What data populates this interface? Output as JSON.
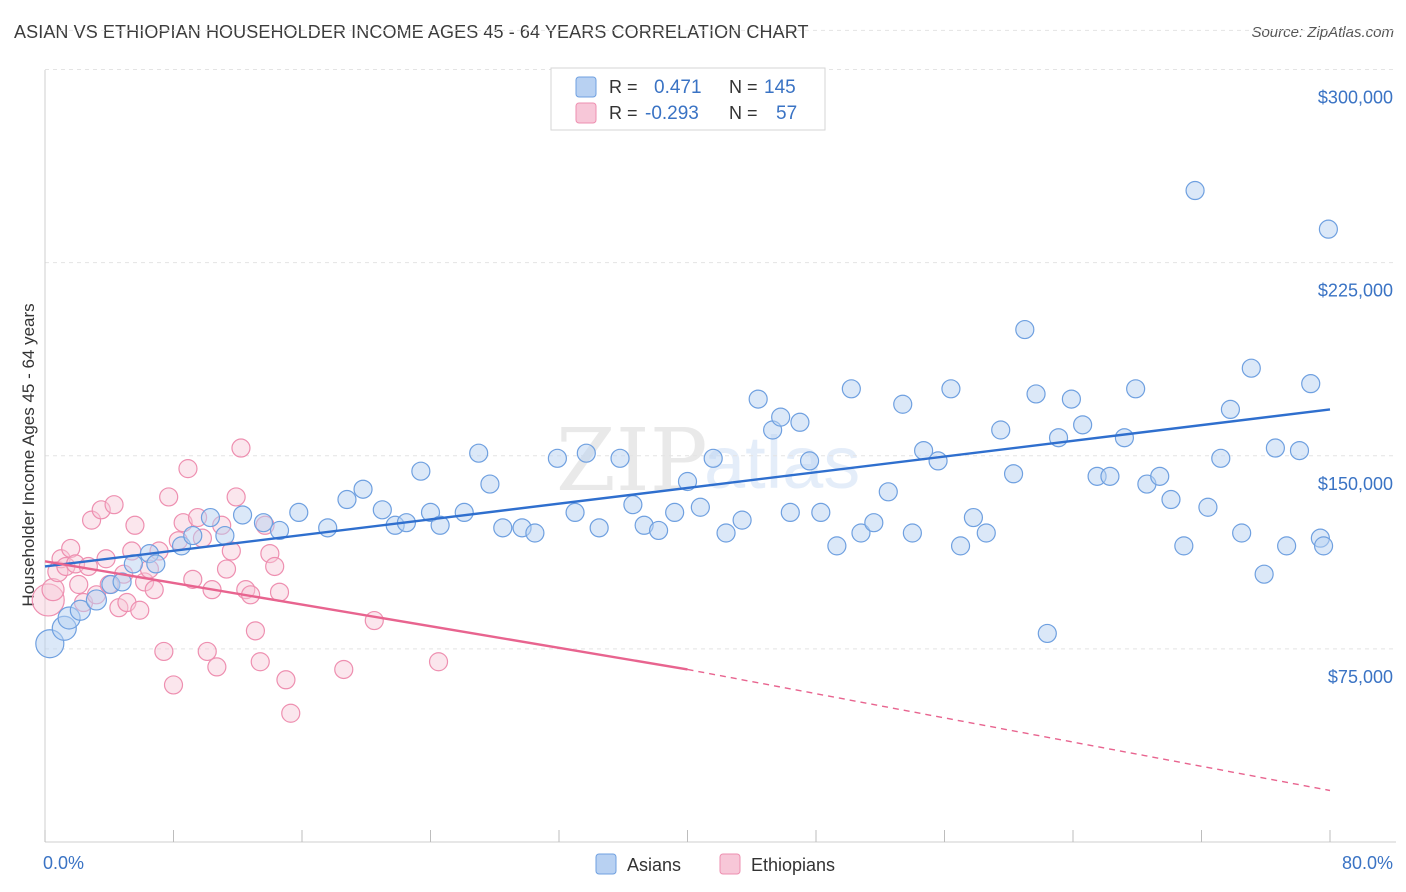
{
  "header": {
    "title": "ASIAN VS ETHIOPIAN HOUSEHOLDER INCOME AGES 45 - 64 YEARS CORRELATION CHART",
    "source": "Source: ZipAtlas.com"
  },
  "colors": {
    "asian": "#6fa0e0",
    "asian_fill": "#b8d1f2",
    "asian_line": "#2f6fce",
    "ethiopian": "#ee8fb0",
    "ethiopian_fill": "#f7c7d8",
    "ethiopian_line": "#e8648f",
    "tick": "#3a73c4"
  },
  "legend": {
    "rows": [
      {
        "r_label": "R =",
        "r_value": "0.471",
        "n_label": "N =",
        "n_value": "145"
      },
      {
        "r_label": "R =",
        "r_value": "-0.293",
        "n_label": "N =",
        "n_value": "57"
      }
    ]
  },
  "bottom_legend": [
    "Asians",
    "Ethiopians"
  ],
  "chart_data": {
    "type": "scatter",
    "ylabel": "Householder Income Ages 45 - 64 years",
    "xlim": [
      0,
      80
    ],
    "ylim": [
      0,
      320000
    ],
    "y_ticks": [
      75000,
      150000,
      225000,
      300000
    ],
    "y_tick_labels": [
      "$75,000",
      "$150,000",
      "$225,000",
      "$300,000"
    ],
    "x_tick_labels": [
      "0.0%",
      "80.0%"
    ],
    "watermark": "ZIPatlas",
    "series": [
      {
        "name": "Asians",
        "r": 0.471,
        "n": 145,
        "trend": {
          "x": [
            0,
            80
          ],
          "y": [
            107000,
            168000
          ]
        },
        "points": [
          [
            0.3,
            77000,
            14
          ],
          [
            1.2,
            83000,
            12
          ],
          [
            1.5,
            87000,
            11
          ],
          [
            2.2,
            90000,
            10
          ],
          [
            3.2,
            94000,
            10
          ],
          [
            4.1,
            100000,
            9
          ],
          [
            4.8,
            101000,
            9
          ],
          [
            5.5,
            108000,
            9
          ],
          [
            6.5,
            112000,
            9
          ],
          [
            6.9,
            108000,
            9
          ],
          [
            8.5,
            115000,
            9
          ],
          [
            9.2,
            119000,
            9
          ],
          [
            10.3,
            126000,
            9
          ],
          [
            11.2,
            119000,
            9
          ],
          [
            12.3,
            127000,
            9
          ],
          [
            13.6,
            124000,
            9
          ],
          [
            14.6,
            121000,
            9
          ],
          [
            15.8,
            128000,
            9
          ],
          [
            17.6,
            122000,
            9
          ],
          [
            18.8,
            133000,
            9
          ],
          [
            19.8,
            137000,
            9
          ],
          [
            21.0,
            129000,
            9
          ],
          [
            21.8,
            123000,
            9
          ],
          [
            22.5,
            124000,
            9
          ],
          [
            23.4,
            144000,
            9
          ],
          [
            24.0,
            128000,
            9
          ],
          [
            24.6,
            123000,
            9
          ],
          [
            26.1,
            128000,
            9
          ],
          [
            27.0,
            151000,
            9
          ],
          [
            27.7,
            139000,
            9
          ],
          [
            28.5,
            122000,
            9
          ],
          [
            29.7,
            122000,
            9
          ],
          [
            30.5,
            120000,
            9
          ],
          [
            31.9,
            149000,
            9
          ],
          [
            33.0,
            128000,
            9
          ],
          [
            33.7,
            151000,
            9
          ],
          [
            34.5,
            122000,
            9
          ],
          [
            35.8,
            149000,
            9
          ],
          [
            36.6,
            131000,
            9
          ],
          [
            37.3,
            123000,
            9
          ],
          [
            38.2,
            121000,
            9
          ],
          [
            39.2,
            128000,
            9
          ],
          [
            40.0,
            140000,
            9
          ],
          [
            40.8,
            130000,
            9
          ],
          [
            41.6,
            149000,
            9
          ],
          [
            42.4,
            120000,
            9
          ],
          [
            43.4,
            125000,
            9
          ],
          [
            44.4,
            172000,
            9
          ],
          [
            45.3,
            160000,
            9
          ],
          [
            45.8,
            165000,
            9
          ],
          [
            46.4,
            128000,
            9
          ],
          [
            47.0,
            163000,
            9
          ],
          [
            47.6,
            148000,
            9
          ],
          [
            48.3,
            128000,
            9
          ],
          [
            49.3,
            115000,
            9
          ],
          [
            50.2,
            176000,
            9
          ],
          [
            50.8,
            120000,
            9
          ],
          [
            51.6,
            124000,
            9
          ],
          [
            52.5,
            136000,
            9
          ],
          [
            53.4,
            170000,
            9
          ],
          [
            54.0,
            120000,
            9
          ],
          [
            54.7,
            152000,
            9
          ],
          [
            55.6,
            148000,
            9
          ],
          [
            56.4,
            176000,
            9
          ],
          [
            57.0,
            115000,
            9
          ],
          [
            57.8,
            126000,
            9
          ],
          [
            58.6,
            120000,
            9
          ],
          [
            59.5,
            160000,
            9
          ],
          [
            60.3,
            143000,
            9
          ],
          [
            61.0,
            199000,
            9
          ],
          [
            61.7,
            174000,
            9
          ],
          [
            62.4,
            81000,
            9
          ],
          [
            63.1,
            157000,
            9
          ],
          [
            63.9,
            172000,
            9
          ],
          [
            64.6,
            162000,
            9
          ],
          [
            65.5,
            142000,
            9
          ],
          [
            66.3,
            142000,
            9
          ],
          [
            67.2,
            157000,
            9
          ],
          [
            67.9,
            176000,
            9
          ],
          [
            68.6,
            139000,
            9
          ],
          [
            69.4,
            142000,
            9
          ],
          [
            70.1,
            133000,
            9
          ],
          [
            70.9,
            115000,
            9
          ],
          [
            71.6,
            253000,
            9
          ],
          [
            72.4,
            130000,
            9
          ],
          [
            73.2,
            149000,
            9
          ],
          [
            73.8,
            168000,
            9
          ],
          [
            74.5,
            120000,
            9
          ],
          [
            75.1,
            184000,
            9
          ],
          [
            75.9,
            104000,
            9
          ],
          [
            76.6,
            153000,
            9
          ],
          [
            77.3,
            115000,
            9
          ],
          [
            78.1,
            152000,
            9
          ],
          [
            78.8,
            178000,
            9
          ],
          [
            79.4,
            118000,
            9
          ],
          [
            79.9,
            238000,
            9
          ],
          [
            79.6,
            115000,
            9
          ]
        ]
      },
      {
        "name": "Ethiopians",
        "r": -0.293,
        "n": 57,
        "trend": {
          "x": [
            0,
            40,
            80
          ],
          "y": [
            109000,
            67000,
            20000
          ]
        },
        "points": [
          [
            0.2,
            94000,
            16
          ],
          [
            0.5,
            98000,
            11
          ],
          [
            0.8,
            105000,
            10
          ],
          [
            1.0,
            110000,
            9
          ],
          [
            1.3,
            107000,
            9
          ],
          [
            1.6,
            114000,
            9
          ],
          [
            1.9,
            108000,
            9
          ],
          [
            2.1,
            100000,
            9
          ],
          [
            2.4,
            93000,
            9
          ],
          [
            2.7,
            107000,
            9
          ],
          [
            2.9,
            125000,
            9
          ],
          [
            3.2,
            96000,
            9
          ],
          [
            3.5,
            129000,
            9
          ],
          [
            3.8,
            110000,
            9
          ],
          [
            4.0,
            100000,
            9
          ],
          [
            4.3,
            131000,
            9
          ],
          [
            4.6,
            91000,
            9
          ],
          [
            4.9,
            104000,
            9
          ],
          [
            5.1,
            93000,
            9
          ],
          [
            5.4,
            113000,
            9
          ],
          [
            5.6,
            123000,
            9
          ],
          [
            5.9,
            90000,
            9
          ],
          [
            6.2,
            101000,
            9
          ],
          [
            6.5,
            106000,
            9
          ],
          [
            6.8,
            98000,
            9
          ],
          [
            7.1,
            113000,
            9
          ],
          [
            7.4,
            74000,
            9
          ],
          [
            7.7,
            134000,
            9
          ],
          [
            8.0,
            61000,
            9
          ],
          [
            8.3,
            117000,
            9
          ],
          [
            8.6,
            124000,
            9
          ],
          [
            8.9,
            145000,
            9
          ],
          [
            9.2,
            102000,
            9
          ],
          [
            9.5,
            126000,
            9
          ],
          [
            9.8,
            118000,
            9
          ],
          [
            10.1,
            74000,
            9
          ],
          [
            10.4,
            98000,
            9
          ],
          [
            10.7,
            68000,
            9
          ],
          [
            11.0,
            123000,
            9
          ],
          [
            11.3,
            106000,
            9
          ],
          [
            11.6,
            113000,
            9
          ],
          [
            11.9,
            134000,
            9
          ],
          [
            12.2,
            153000,
            9
          ],
          [
            12.5,
            98000,
            9
          ],
          [
            12.8,
            96000,
            9
          ],
          [
            13.1,
            82000,
            9
          ],
          [
            13.4,
            70000,
            9
          ],
          [
            13.7,
            123000,
            9
          ],
          [
            14.0,
            112000,
            9
          ],
          [
            14.3,
            107000,
            9
          ],
          [
            14.6,
            97000,
            9
          ],
          [
            15.0,
            63000,
            9
          ],
          [
            15.3,
            50000,
            9
          ],
          [
            18.6,
            67000,
            9
          ],
          [
            20.5,
            86000,
            9
          ],
          [
            24.5,
            70000,
            9
          ]
        ]
      }
    ]
  }
}
